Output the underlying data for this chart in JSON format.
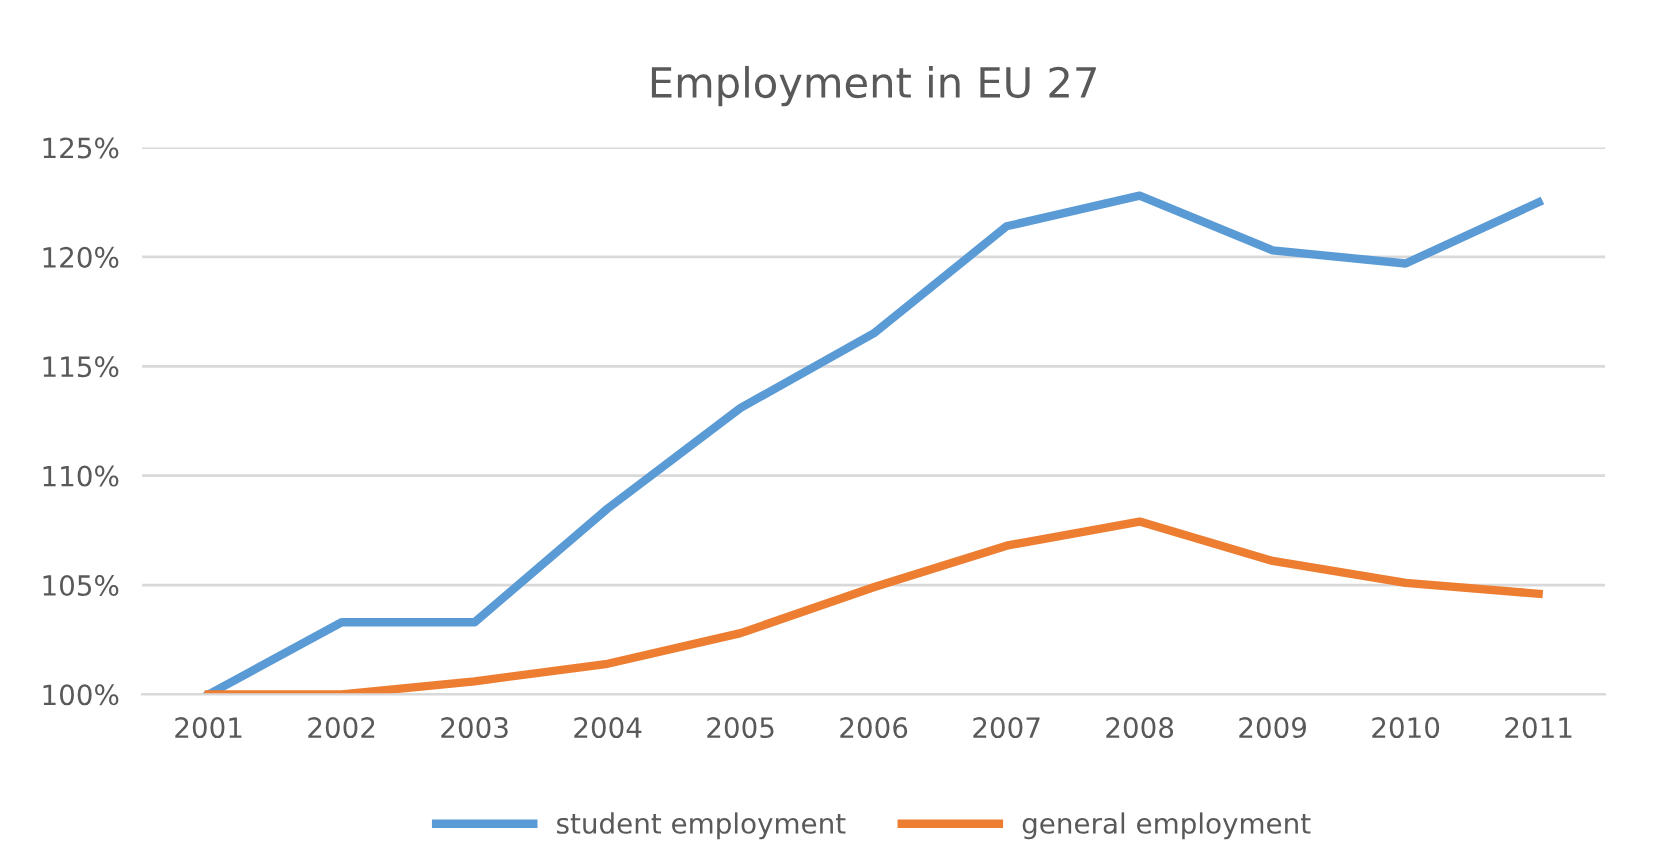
{
  "chart_data": {
    "type": "line",
    "title": "Employment in EU 27",
    "categories": [
      "2001",
      "2002",
      "2003",
      "2004",
      "2005",
      "2006",
      "2007",
      "2008",
      "2009",
      "2010",
      "2011"
    ],
    "series": [
      {
        "name": "student employment",
        "color": "#5b9bd5",
        "values": [
          100,
          103.3,
          103.3,
          108.5,
          113.1,
          116.5,
          121.4,
          122.8,
          120.3,
          119.7,
          122.5
        ]
      },
      {
        "name": "general employment",
        "color": "#ed7d31",
        "values": [
          100,
          100,
          100.6,
          101.4,
          102.8,
          104.9,
          106.8,
          107.9,
          106.1,
          105.1,
          104.6
        ]
      }
    ],
    "ylim": [
      100,
      125
    ],
    "yticks": [
      {
        "value": 100,
        "label": "100%"
      },
      {
        "value": 105,
        "label": "105%"
      },
      {
        "value": 110,
        "label": "110%"
      },
      {
        "value": 115,
        "label": "115%"
      },
      {
        "value": 120,
        "label": "120%"
      },
      {
        "value": 125,
        "label": "125%"
      }
    ],
    "grid": "y",
    "legend": "bottom",
    "marker": "none",
    "line_style": "solid"
  }
}
